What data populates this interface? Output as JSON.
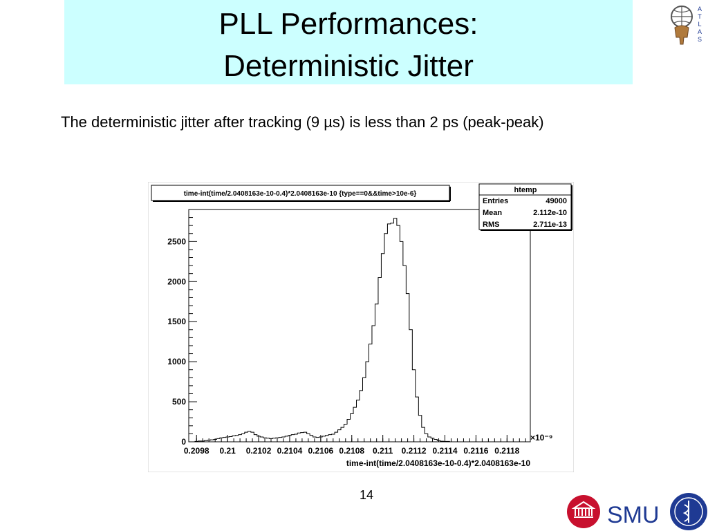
{
  "slide": {
    "title_line1": "PLL Performances:",
    "title_line2": "Deterministic Jitter",
    "body": "The deterministic jitter after tracking (9 µs) is less than 2 ps (peak-peak)",
    "page_number": "14",
    "smu_text": "SMU",
    "atlas_letters": [
      "A",
      "T",
      "L",
      "A",
      "S"
    ],
    "colors": {
      "title_bg": "#ccffff",
      "smu_red": "#c8102e",
      "smu_blue": "#1f3a93"
    }
  },
  "chart_data": {
    "type": "histogram",
    "title": "time-int(time/2.0408163e-10-0.4)*2.0408163e-10 {type==0&&time>10e-6}",
    "xlabel": "time-int(time/2.0408163e-10-0.4)*2.0408163e-10",
    "x_exponent_label": "×10⁻⁹",
    "xlim": [
      0.20975,
      0.21195
    ],
    "ylim": [
      0,
      2900
    ],
    "x_ticks": [
      0.2098,
      0.21,
      0.2102,
      0.2104,
      0.2106,
      0.2108,
      0.211,
      0.2112,
      0.2114,
      0.2116,
      0.2118
    ],
    "x_tick_labels": [
      "0.2098",
      "0.21",
      "0.2102",
      "0.2104",
      "0.2106",
      "0.2108",
      "0.211",
      "0.2112",
      "0.2114",
      "0.2116",
      "0.2118"
    ],
    "y_ticks": [
      0,
      500,
      1000,
      1500,
      2000,
      2500
    ],
    "y_tick_labels": [
      "0",
      "500",
      "1000",
      "1500",
      "2000",
      "2500"
    ],
    "bin_start": 0.20975,
    "bin_width": 2e-05,
    "counts": [
      0,
      0,
      5,
      10,
      10,
      15,
      20,
      25,
      30,
      40,
      50,
      55,
      60,
      65,
      75,
      80,
      90,
      100,
      120,
      130,
      120,
      90,
      70,
      60,
      50,
      45,
      40,
      45,
      50,
      55,
      60,
      70,
      80,
      90,
      95,
      110,
      115,
      120,
      100,
      80,
      60,
      55,
      60,
      70,
      80,
      90,
      95,
      120,
      150,
      180,
      220,
      280,
      350,
      430,
      520,
      640,
      800,
      1000,
      1220,
      1450,
      1720,
      2050,
      2350,
      2600,
      2720,
      2730,
      2790,
      2700,
      2500,
      2200,
      1850,
      1400,
      900,
      560,
      330,
      180,
      100,
      60,
      45,
      30,
      15,
      8,
      5,
      5,
      0,
      0,
      0,
      0,
      0,
      0
    ],
    "stats_box": {
      "name": "htemp",
      "rows": [
        {
          "label": "Entries",
          "value": "49000"
        },
        {
          "label": "Mean",
          "value": "2.112e-10"
        },
        {
          "label": "RMS",
          "value": "2.711e-13"
        }
      ]
    },
    "grid": false,
    "legend": "top-right"
  }
}
